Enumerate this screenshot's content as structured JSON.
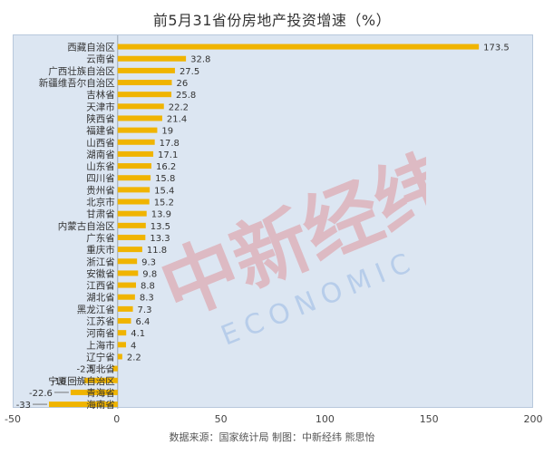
{
  "chart_data": {
    "type": "bar",
    "orientation": "horizontal",
    "title": "前5月31省份房地产投资增速（%）",
    "categories": [
      "西藏自治区",
      "云南省",
      "广西壮族自治区",
      "新疆维吾尔自治区",
      "吉林省",
      "天津市",
      "陕西省",
      "福建省",
      "山西省",
      "湖南省",
      "山东省",
      "四川省",
      "贵州省",
      "北京市",
      "甘肃省",
      "内蒙古自治区",
      "广东省",
      "重庆市",
      "浙江省",
      "安徽省",
      "江西省",
      "湖北省",
      "黑龙江省",
      "江苏省",
      "河南省",
      "上海市",
      "辽宁省",
      "河北省",
      "宁夏回族自治区",
      "青海省",
      "海南省"
    ],
    "values": [
      173.5,
      32.8,
      27.5,
      26,
      25.8,
      22.2,
      21.4,
      19,
      17.8,
      17.1,
      16.2,
      15.8,
      15.4,
      15.2,
      13.9,
      13.5,
      13.3,
      11.8,
      9.3,
      9.8,
      8.8,
      8.3,
      7.3,
      6.4,
      4.1,
      4,
      2.2,
      -2.5,
      -16,
      -22.6,
      -33
    ],
    "value_labels": [
      "173.5",
      "32.8",
      "27.5",
      "26",
      "25.8",
      "22.2",
      "21.4",
      "19",
      "17.8",
      "17.1",
      "16.2",
      "15.8",
      "15.4",
      "15.2",
      "13.9",
      "13.5",
      "13.3",
      "11.8",
      "9.3",
      "9.8",
      "8.8",
      "8.3",
      "7.3",
      "6.4",
      "4.1",
      "4",
      "2.2",
      "-2.5",
      "-16",
      "-22.6",
      "-33"
    ],
    "x_ticks": [
      "-50",
      "0",
      "50",
      "100",
      "150",
      "200"
    ],
    "xlim": [
      -50,
      200
    ],
    "bar_color": "#f0b400",
    "background_color": "#dce6f2",
    "grid": false,
    "legend": "none"
  },
  "source": "数据来源：国家统计局 制图：中新经纬 熊思怡",
  "watermark": {
    "brand_cn": "中新经纬",
    "brand_en": "ECONOMIC VIEW"
  }
}
